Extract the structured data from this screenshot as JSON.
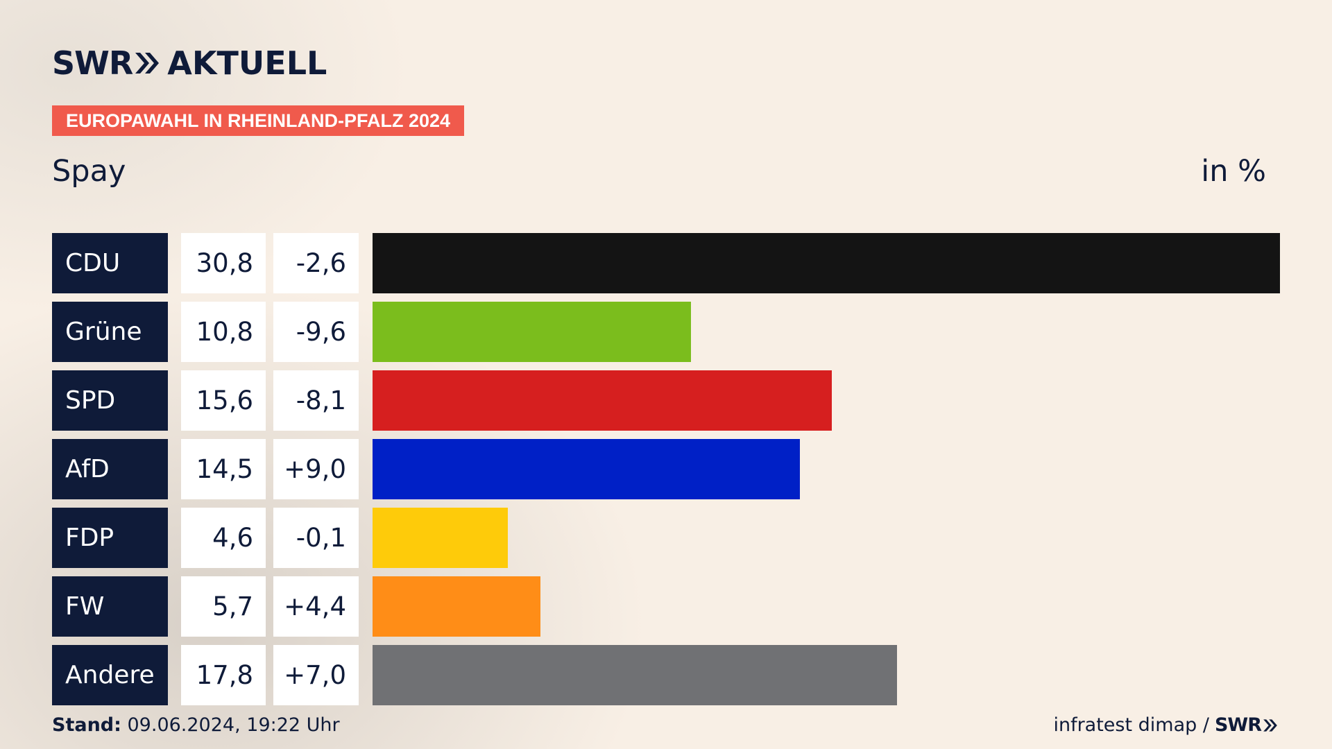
{
  "brand": {
    "logo_main": "SWR",
    "logo_sub": "AKTUELL"
  },
  "badge": "EUROPAWAHL IN RHEINLAND-PFALZ 2024",
  "region": "Spay",
  "unit": "in %",
  "colors": {
    "navy": "#0f1b39",
    "badge": "#f05a4c"
  },
  "chart_data": {
    "type": "bar",
    "orientation": "horizontal",
    "categories": [
      "CDU",
      "Grüne",
      "SPD",
      "AfD",
      "FDP",
      "FW",
      "Andere"
    ],
    "values": [
      30.8,
      10.8,
      15.6,
      14.5,
      4.6,
      5.7,
      17.8
    ],
    "value_labels": [
      "30,8",
      "10,8",
      "15,6",
      "14,5",
      "4,6",
      "5,7",
      "17,8"
    ],
    "diff_labels": [
      "-2,6",
      "-9,6",
      "-8,1",
      "+9,0",
      "-0,1",
      "+4,4",
      "+7,0"
    ],
    "diffs": [
      -2.6,
      -9.6,
      -8.1,
      9.0,
      -0.1,
      4.4,
      7.0
    ],
    "colors": [
      "#141414",
      "#7bbd1d",
      "#d61f1f",
      "#0020c6",
      "#fecb0a",
      "#ff8d17",
      "#707174"
    ],
    "xlim": [
      0,
      30.8
    ]
  },
  "footer": {
    "stand_label": "Stand:",
    "stand_value": " 09.06.2024, 19:22 Uhr",
    "source": "infratest dimap /",
    "source_logo": "SWR"
  }
}
